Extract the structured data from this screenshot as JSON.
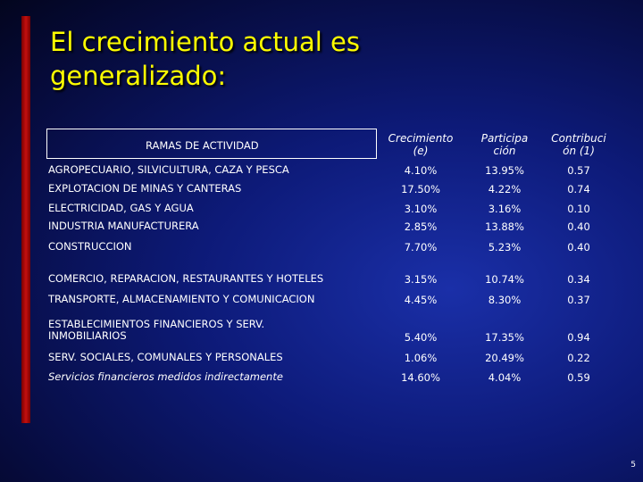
{
  "slide": {
    "title_line1": "El crecimiento actual es",
    "title_line2": "generalizado:",
    "page_number": "5"
  },
  "table": {
    "header": {
      "label": "RAMAS DE ACTIVIDAD",
      "col1_line1": "Crecimiento",
      "col1_line2": "(e)",
      "col2_line1": "Participa",
      "col2_line2": "ción",
      "col3_line1": "Contribuci",
      "col3_line2": "ón (1)"
    },
    "rows": [
      {
        "name": "AGROPECUARIO, SILVICULTURA, CAZA Y PESCA",
        "crecimiento": "4.10%",
        "participacion": "13.95%",
        "contribucion": "0.57"
      },
      {
        "name": "EXPLOTACION DE MINAS Y CANTERAS",
        "crecimiento": "17.50%",
        "participacion": "4.22%",
        "contribucion": "0.74"
      },
      {
        "name": "ELECTRICIDAD, GAS Y AGUA",
        "crecimiento": "3.10%",
        "participacion": "3.16%",
        "contribucion": "0.10"
      },
      {
        "name": "INDUSTRIA MANUFACTURERA",
        "crecimiento": "2.85%",
        "participacion": "13.88%",
        "contribucion": "0.40"
      },
      {
        "name": "CONSTRUCCION",
        "crecimiento": "7.70%",
        "participacion": "5.23%",
        "contribucion": "0.40"
      },
      {
        "name": "COMERCIO, REPARACION, RESTAURANTES Y HOTELES",
        "crecimiento": "3.15%",
        "participacion": "10.74%",
        "contribucion": "0.34"
      },
      {
        "name": "TRANSPORTE, ALMACENAMIENTO Y COMUNICACION",
        "crecimiento": "4.45%",
        "participacion": "8.30%",
        "contribucion": "0.37"
      },
      {
        "name": "ESTABLECIMIENTOS FINANCIEROS Y SERV. INMOBILIARIOS",
        "crecimiento": "5.40%",
        "participacion": "17.35%",
        "contribucion": "0.94"
      },
      {
        "name": "SERV. SOCIALES, COMUNALES Y PERSONALES",
        "crecimiento": "1.06%",
        "participacion": "20.49%",
        "contribucion": "0.22"
      },
      {
        "name": "Servicios financieros medidos indirectamente",
        "crecimiento": "14.60%",
        "participacion": "4.04%",
        "contribucion": "0.59"
      }
    ]
  }
}
